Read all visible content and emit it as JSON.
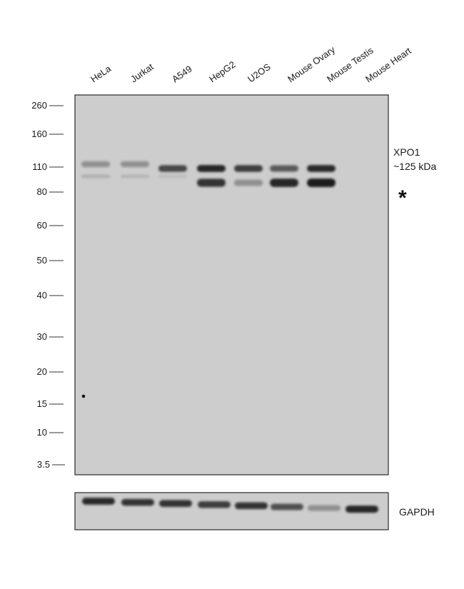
{
  "lanes": [
    "HeLa",
    "Jurkat",
    "A549",
    "HepG2",
    "U2OS",
    "Mouse Ovary",
    "Mouse Testis",
    "Mouse Heart"
  ],
  "markers": [
    "260",
    "160",
    "110",
    "80",
    "60",
    "50",
    "40",
    "30",
    "20",
    "15",
    "10",
    "3.5"
  ],
  "target_label": {
    "name": "XPO1",
    "size": "~125 kDa"
  },
  "asterisk": "*",
  "loading_control": "GAPDH",
  "colors": {
    "membrane": "#cdcdcd",
    "band": "#1a1a1a",
    "border": "#2a2a2a"
  },
  "band_intensity": {
    "xpo1_upper": [
      0.35,
      0.35,
      0.75,
      0.95,
      0.8,
      0.65,
      0.9,
      0.0
    ],
    "xpo1_lower": [
      0.18,
      0.12,
      0.08,
      0.85,
      0.35,
      0.95,
      1.0,
      0.0
    ],
    "gapdh": [
      0.9,
      0.85,
      0.85,
      0.8,
      0.85,
      0.7,
      0.35,
      0.95
    ]
  }
}
